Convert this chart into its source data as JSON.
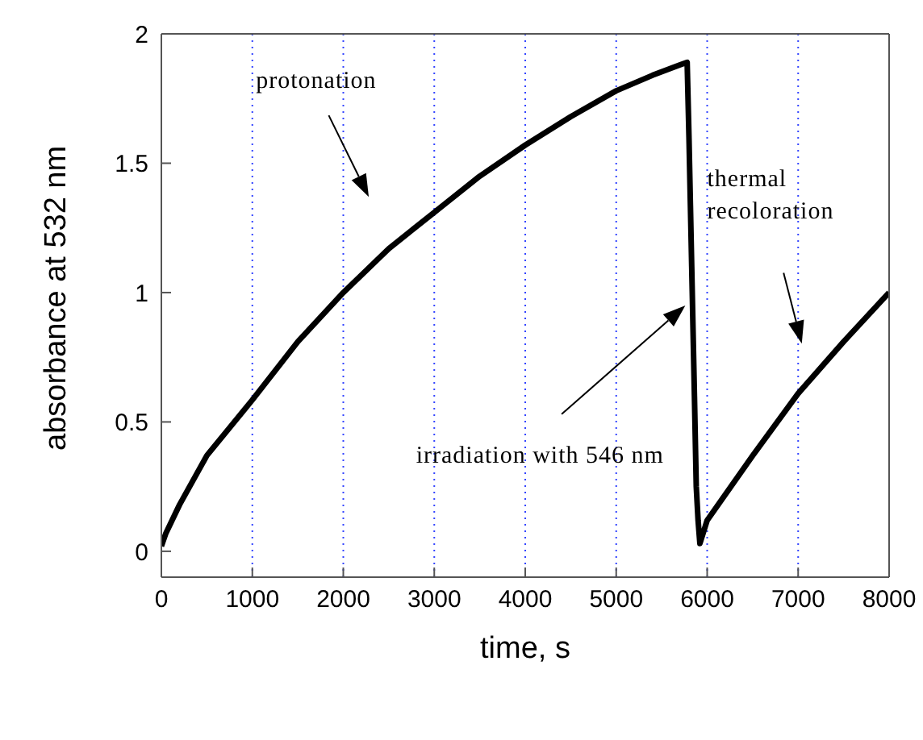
{
  "chart_data": {
    "type": "line",
    "xlabel": "time, s",
    "ylabel": "absorbance at 532 nm",
    "x": [
      0,
      50,
      200,
      500,
      1000,
      1500,
      2000,
      2500,
      3000,
      3500,
      4000,
      4500,
      5000,
      5400,
      5700,
      5780,
      5800,
      5830,
      5860,
      5880,
      5900,
      5920,
      6000,
      6500,
      7000,
      7500,
      8000
    ],
    "series": [
      {
        "color": "#000000",
        "values": [
          0.02,
          0.07,
          0.18,
          0.37,
          0.585,
          0.81,
          1.0,
          1.17,
          1.31,
          1.45,
          1.57,
          1.68,
          1.78,
          1.84,
          1.88,
          1.89,
          1.6,
          1.1,
          0.6,
          0.25,
          0.12,
          0.03,
          0.12,
          0.37,
          0.61,
          0.81,
          1.0
        ]
      }
    ],
    "xlim": [
      0,
      8000
    ],
    "xticks": [
      0,
      1000,
      2000,
      3000,
      4000,
      5000,
      6000,
      7000,
      8000
    ],
    "ylim": [
      -0.1,
      2
    ],
    "yticks": [
      0,
      0.5,
      1,
      1.5,
      2
    ],
    "grid": "x",
    "marker": "none",
    "line_style": "solid",
    "annotations": [
      "protonation",
      "irradiation with 546 nm",
      "thermal recoloration"
    ]
  }
}
